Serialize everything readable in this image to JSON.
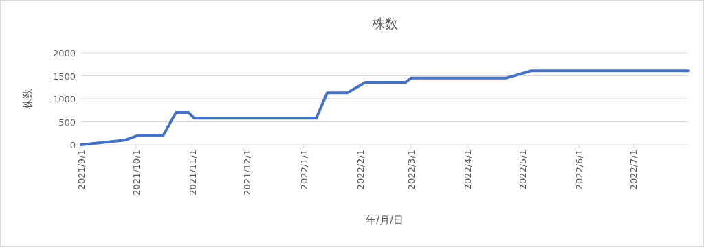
{
  "chart_data": {
    "type": "line",
    "title": "株数",
    "xlabel": "年/月/日",
    "ylabel": "株数",
    "x": [
      "2021-09-01",
      "2021-09-25",
      "2021-10-02",
      "2021-10-16",
      "2021-10-23",
      "2021-10-30",
      "2021-11-02",
      "2022-01-08",
      "2022-01-14",
      "2022-01-25",
      "2022-02-04",
      "2022-02-26",
      "2022-03-01",
      "2022-04-22",
      "2022-05-06",
      "2022-07-31"
    ],
    "series": [
      {
        "color": "#4472c4",
        "values": [
          0,
          100,
          200,
          200,
          700,
          700,
          580,
          580,
          1130,
          1130,
          1360,
          1360,
          1450,
          1450,
          1610,
          1610
        ]
      }
    ],
    "xlim": [
      "2021-09-01",
      "2022-07-31"
    ],
    "xticks": [
      {
        "value": "2021-09-01",
        "label": "2021/9/1"
      },
      {
        "value": "2021-10-01",
        "label": "2021/10/1"
      },
      {
        "value": "2021-11-01",
        "label": "2021/11/1"
      },
      {
        "value": "2021-12-01",
        "label": "2021/12/1"
      },
      {
        "value": "2022-01-01",
        "label": "2022/1/1"
      },
      {
        "value": "2022-02-01",
        "label": "2022/2/1"
      },
      {
        "value": "2022-03-01",
        "label": "2022/3/1"
      },
      {
        "value": "2022-04-01",
        "label": "2022/4/1"
      },
      {
        "value": "2022-05-01",
        "label": "2022/5/1"
      },
      {
        "value": "2022-06-01",
        "label": "2022/6/1"
      },
      {
        "value": "2022-07-01",
        "label": "2022/7/1"
      }
    ],
    "ylim": [
      0,
      2000
    ],
    "yticks": [
      0,
      500,
      1000,
      1500,
      2000
    ],
    "grid": "y",
    "marker": "none",
    "line_style": "solid"
  }
}
